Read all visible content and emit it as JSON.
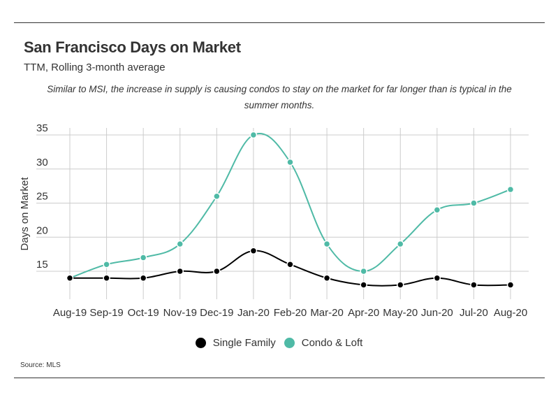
{
  "header": {
    "title": "San Francisco Days on Market",
    "subtitle": "TTM, Rolling 3-month average",
    "annotation": "Similar to MSI, the increase in supply is causing condos to stay on the market for far longer than is typical in the summer months."
  },
  "footer": {
    "source": "Source:  MLS"
  },
  "colors": {
    "single_family": "#000000",
    "condo_loft": "#4fbaa6",
    "grid": "#cccccc",
    "text": "#333333"
  },
  "chart_data": {
    "type": "line",
    "title": "San Francisco Days on Market",
    "subtitle": "TTM, Rolling 3-month average",
    "xlabel": "",
    "ylabel": "Days on Market",
    "categories": [
      "Aug-19",
      "Sep-19",
      "Oct-19",
      "Nov-19",
      "Dec-19",
      "Jan-20",
      "Feb-20",
      "Mar-20",
      "Apr-20",
      "May-20",
      "Jun-20",
      "Jul-20",
      "Aug-20"
    ],
    "yticks": [
      15,
      20,
      25,
      30,
      35
    ],
    "ylim": [
      12,
      35
    ],
    "grid": true,
    "legend_position": "bottom-center",
    "series": [
      {
        "name": "Single Family",
        "color": "#000000",
        "values": [
          14,
          14,
          14,
          15,
          15,
          18,
          16,
          14,
          13,
          13,
          14,
          13,
          13
        ]
      },
      {
        "name": "Condo & Loft",
        "color": "#4fbaa6",
        "values": [
          14,
          16,
          17,
          19,
          26,
          35,
          31,
          19,
          15,
          19,
          24,
          25,
          27
        ]
      }
    ]
  }
}
